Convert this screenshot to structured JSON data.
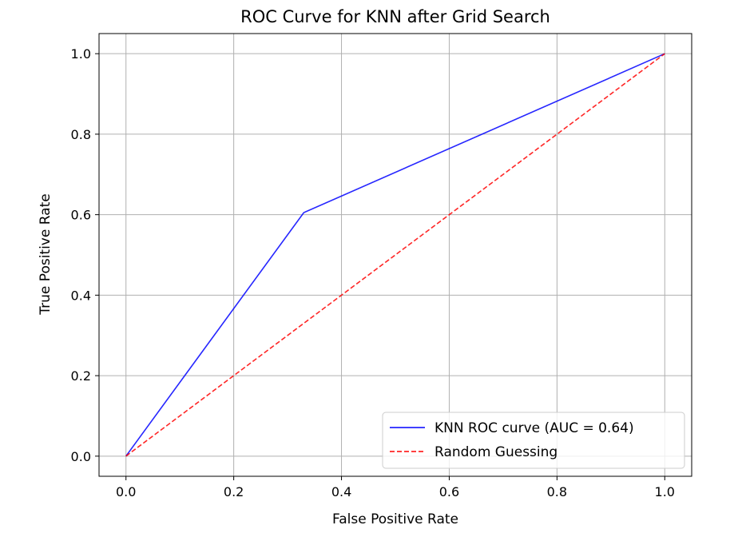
{
  "chart_data": {
    "type": "line",
    "title": "ROC Curve for KNN after Grid Search",
    "xlabel": "False Positive Rate",
    "ylabel": "True Positive Rate",
    "xlim": [
      -0.05,
      1.05
    ],
    "ylim": [
      -0.05,
      1.05
    ],
    "xticks": [
      0.0,
      0.2,
      0.4,
      0.6,
      0.8,
      1.0
    ],
    "yticks": [
      0.0,
      0.2,
      0.4,
      0.6,
      0.8,
      1.0
    ],
    "xtick_labels": [
      "0.0",
      "0.2",
      "0.4",
      "0.6",
      "0.8",
      "1.0"
    ],
    "ytick_labels": [
      "0.0",
      "0.2",
      "0.4",
      "0.6",
      "0.8",
      "1.0"
    ],
    "grid": true,
    "legend_position": "lower-right",
    "series": [
      {
        "name": "KNN ROC curve (AUC = 0.64)",
        "x": [
          0.0,
          0.33,
          1.0
        ],
        "y": [
          0.0,
          0.605,
          1.0
        ],
        "color": "#0000ff",
        "style": "solid"
      },
      {
        "name": "Random Guessing",
        "x": [
          0.0,
          1.0
        ],
        "y": [
          0.0,
          1.0
        ],
        "color": "#ff0000",
        "style": "dashed"
      }
    ]
  }
}
